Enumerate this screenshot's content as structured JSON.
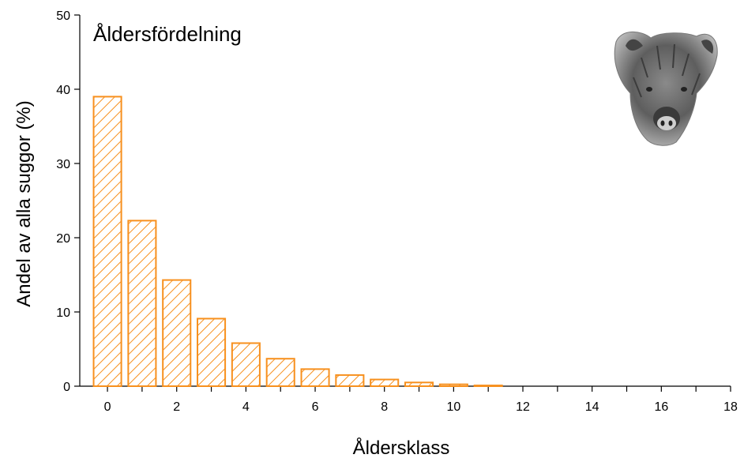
{
  "chart_data": {
    "type": "bar",
    "title": "Åldersfördelning",
    "xlabel": "Åldersklass",
    "ylabel": "Andel av alla suggor (%)",
    "categories": [
      0,
      1,
      2,
      3,
      4,
      5,
      6,
      7,
      8,
      9,
      10,
      11
    ],
    "values": [
      39.0,
      22.3,
      14.3,
      9.1,
      5.8,
      3.7,
      2.3,
      1.5,
      0.9,
      0.5,
      0.25,
      0.1
    ],
    "xlim": [
      -0.8,
      18
    ],
    "ylim": [
      0,
      50
    ],
    "xticks": [
      0,
      2,
      4,
      6,
      8,
      10,
      12,
      14,
      16,
      18
    ],
    "yticks": [
      0,
      10,
      20,
      30,
      40,
      50
    ],
    "grid": false,
    "legend": "none",
    "bar_color": "#f7901e",
    "bar_pattern": "diagonal-hatch"
  },
  "image": {
    "icon": "wild-boar-head-icon"
  }
}
